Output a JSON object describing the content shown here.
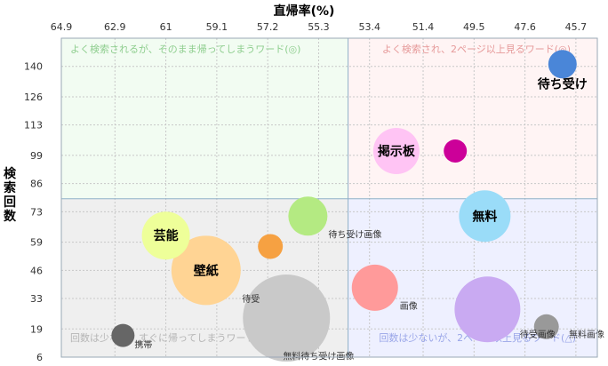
{
  "chart_data": {
    "type": "scatter",
    "subtype": "bubble",
    "xlabel": "直帰率(%)",
    "ylabel": "検索回数",
    "x_reversed": true,
    "xlim": [
      64.9,
      44.9
    ],
    "ylim": [
      6,
      153
    ],
    "x_ticks": [
      "64.9",
      "62.9",
      "61",
      "59.1",
      "57.2",
      "55.3",
      "53.4",
      "51.4",
      "49.5",
      "47.6",
      "45.7"
    ],
    "y_ticks": [
      "140",
      "126",
      "113",
      "99",
      "86",
      "73",
      "59",
      "46",
      "33",
      "19",
      "6"
    ],
    "grid": true,
    "quadrant_divider": {
      "x": 54.2,
      "y": 79
    },
    "quadrants": [
      {
        "label": "よく検索されるが、そのまま帰ってしまうワード(◎)",
        "color": "#8fce8f",
        "fill": "#f2fcf2"
      },
      {
        "label": "よく検索され、2ページ以上見るワード(◎)",
        "color": "#e69a9a",
        "fill": "#fff4f4"
      },
      {
        "label": "回数は少なく、すぐに帰ってしまうワード",
        "color": "#b5b5b5",
        "fill": "#efefef"
      },
      {
        "label": "回数は少ないが、2ページ以上見るワード(△)",
        "color": "#9aa6e8",
        "fill": "#eef0ff"
      }
    ],
    "points": [
      {
        "label": "待ち受け",
        "x": 46.2,
        "y": 141,
        "r": 16,
        "color": "#4a86d8",
        "label_style": "bold"
      },
      {
        "label": "掲示板",
        "x": 52.4,
        "y": 101,
        "r": 26,
        "color": "#ffc4f4",
        "label_style": "bold"
      },
      {
        "label": "",
        "x": 50.2,
        "y": 101,
        "r": 13,
        "color": "#cc0099",
        "label_style": "none"
      },
      {
        "label": "無料",
        "x": 49.1,
        "y": 71,
        "r": 29,
        "color": "#9adcf8",
        "label_style": "bold"
      },
      {
        "label": "待ち受け画像",
        "x": 55.7,
        "y": 71,
        "r": 22,
        "color": "#b4ea82",
        "label_style": "small"
      },
      {
        "label": "芸能",
        "x": 61.0,
        "y": 62,
        "r": 27,
        "color": "#eeff99",
        "label_style": "bold"
      },
      {
        "label": "",
        "x": 57.1,
        "y": 57,
        "r": 14,
        "color": "#f6a142",
        "label_style": "none"
      },
      {
        "label": "壁紙",
        "x": 59.5,
        "y": 46,
        "r": 39,
        "color": "#ffd494",
        "label_style": "bold"
      },
      {
        "label": "画像",
        "x": 53.2,
        "y": 38,
        "r": 26,
        "color": "#ff9a9a",
        "label_style": "small"
      },
      {
        "label": "待受",
        "x": 56.5,
        "y": 24,
        "r": 49,
        "color": "#c9c9c9",
        "label_style": "small"
      },
      {
        "label": "",
        "x": 49.0,
        "y": 28,
        "r": 37,
        "color": "#c9aaf2",
        "label_style": "none"
      },
      {
        "label": "携帯",
        "x": 62.6,
        "y": 16,
        "r": 13,
        "color": "#666666",
        "label_style": "small"
      },
      {
        "label": "待受画像",
        "x": 46.8,
        "y": 20,
        "r": 14,
        "color": "#999999",
        "label_style": "small"
      }
    ],
    "extra_labels": [
      {
        "text": "無料待ち受け画像",
        "x": 55.3,
        "y": 5
      },
      {
        "text": "無料画像",
        "x": 45.3,
        "y": 15
      }
    ]
  }
}
